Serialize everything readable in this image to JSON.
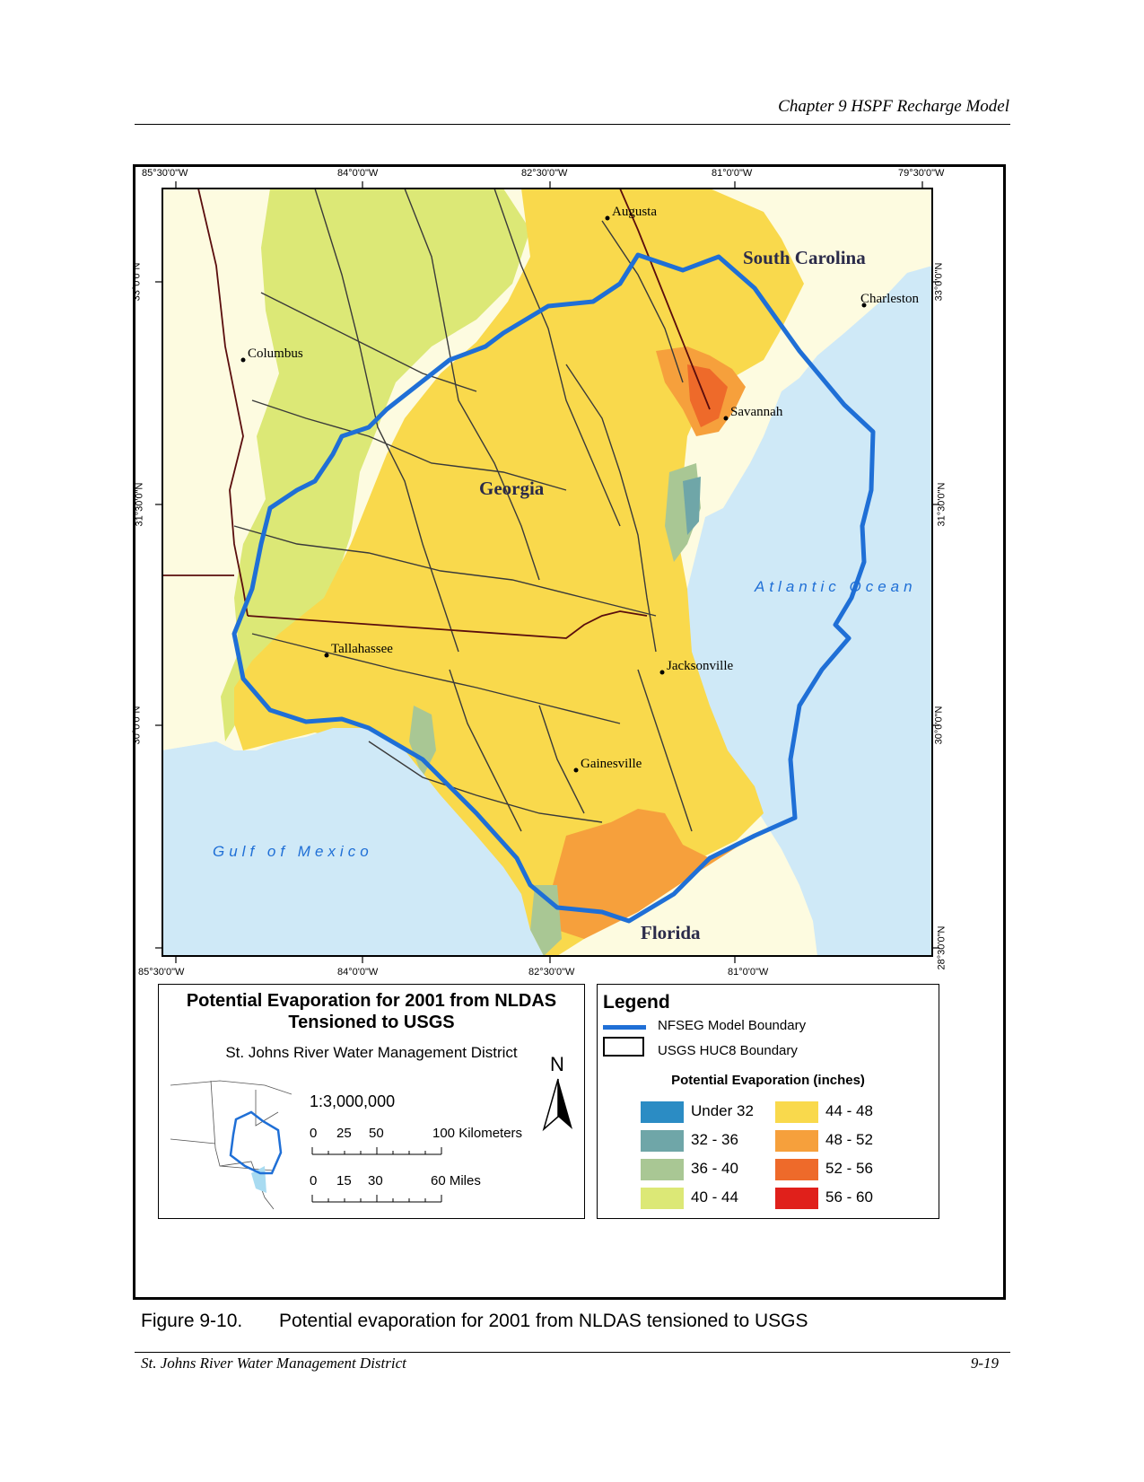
{
  "header": {
    "chapter_title": "Chapter 9 HSPF Recharge Model"
  },
  "footer": {
    "organization": "St. Johns River Water Management District",
    "page_number": "9-19"
  },
  "caption": {
    "number": "Figure 9-10.",
    "text": "Potential evaporation for 2001 from NLDAS tensioned to USGS"
  },
  "map": {
    "lon_labels_top": [
      "85°30'0\"W",
      "84°0'0\"W",
      "82°30'0\"W",
      "81°0'0\"W",
      "79°30'0\"W"
    ],
    "lon_labels_bottom": [
      "85°30'0\"W",
      "84°0'0\"W",
      "82°30'0\"W",
      "81°0'0\"W"
    ],
    "lat_labels_left": [
      "33°0'0\"N",
      "31°30'0\"N",
      "30°0'0\"N"
    ],
    "lat_labels_right": [
      "33°0'0\"N",
      "31°30'0\"N",
      "30°0'0\"N",
      "28°30'0\"N"
    ],
    "places": {
      "augusta": "Augusta",
      "columbus": "Columbus",
      "charleston": "Charleston",
      "savannah": "Savannah",
      "tallahassee": "Tallahassee",
      "jacksonville": "Jacksonville",
      "gainesville": "Gainesville"
    },
    "regions": {
      "south_carolina": "South Carolina",
      "georgia": "Georgia",
      "florida": "Florida"
    },
    "water": {
      "atlantic": "Atlantic Ocean",
      "gulf": "Gulf of Mexico"
    },
    "colors": {
      "ocean": "#cfe9f7",
      "land": "#fdfbe0",
      "boundary": "#1f6fd6"
    }
  },
  "title_box": {
    "title_line1": "Potential Evaporation for 2001 from NLDAS",
    "title_line2": "Tensioned to USGS",
    "agency": "St. Johns River Water Management District",
    "scale": "1:3,000,000",
    "km_scale": {
      "ticks": [
        "0",
        "25",
        "50",
        "100 Kilometers"
      ]
    },
    "mi_scale": {
      "ticks": [
        "0",
        "15",
        "30",
        "60 Miles"
      ]
    },
    "north": "N"
  },
  "legend": {
    "title": "Legend",
    "lines": [
      {
        "label": "NFSEG Model Boundary",
        "color": "#1f6fd6"
      },
      {
        "label": "USGS HUC8 Boundary",
        "color": "#000000"
      }
    ],
    "class_title": "Potential Evaporation (inches)",
    "classes": [
      {
        "label": "Under 32",
        "color": "#2b8cc4"
      },
      {
        "label": "32 - 36",
        "color": "#6fa6a8"
      },
      {
        "label": "36 - 40",
        "color": "#a9c794"
      },
      {
        "label": "40 - 44",
        "color": "#dce876"
      },
      {
        "label": "44 - 48",
        "color": "#f9d94c"
      },
      {
        "label": "48 - 52",
        "color": "#f6a03c"
      },
      {
        "label": "52 - 56",
        "color": "#ee6a2a"
      },
      {
        "label": "56 - 60",
        "color": "#e0201b"
      }
    ]
  }
}
